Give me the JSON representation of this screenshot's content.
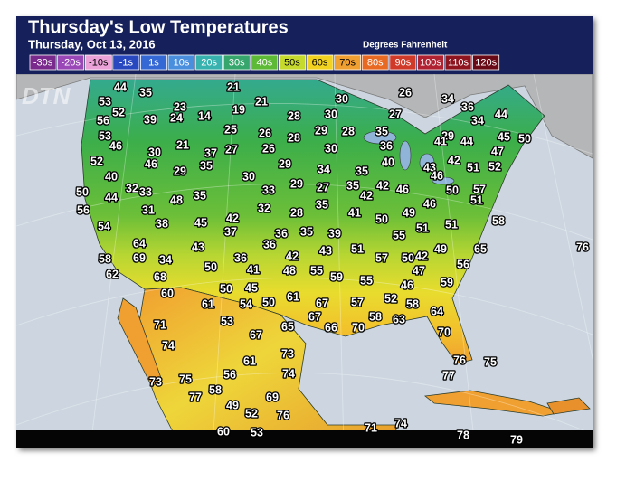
{
  "header": {
    "title": "Thursday's Low Temperatures",
    "subtitle": "Thursday, Oct 13, 2016",
    "units": "Degrees Fahrenheit"
  },
  "legend": [
    {
      "label": "-30s",
      "color": "#7a2a8c"
    },
    {
      "label": "-20s",
      "color": "#9a48b8"
    },
    {
      "label": "-10s",
      "color": "#eaa2d8"
    },
    {
      "label": "-1s",
      "color": "#2848c0"
    },
    {
      "label": "1s",
      "color": "#3468d4"
    },
    {
      "label": "10s",
      "color": "#4a8fde"
    },
    {
      "label": "20s",
      "color": "#38b2ae"
    },
    {
      "label": "30s",
      "color": "#36a66c"
    },
    {
      "label": "40s",
      "color": "#5cba36"
    },
    {
      "label": "50s",
      "color": "#c6da2e"
    },
    {
      "label": "60s",
      "color": "#f2d21e"
    },
    {
      "label": "70s",
      "color": "#f0a030"
    },
    {
      "label": "80s",
      "color": "#e86a22"
    },
    {
      "label": "90s",
      "color": "#d03a28"
    },
    {
      "label": "100s",
      "color": "#b02232"
    },
    {
      "label": "110s",
      "color": "#8e1420"
    },
    {
      "label": "120s",
      "color": "#6a0a16"
    }
  ],
  "logo": "DTN",
  "temperatures": [
    44,
    35,
    21,
    30,
    26,
    34,
    53,
    23,
    19,
    21,
    36,
    52,
    14,
    28,
    30,
    27,
    44,
    56,
    39,
    24,
    34,
    25,
    26,
    29,
    28,
    35,
    53,
    28,
    29,
    45,
    50,
    46,
    21,
    26,
    30,
    36,
    41,
    44,
    30,
    37,
    27,
    47,
    52,
    46,
    35,
    29,
    40,
    42,
    51,
    52,
    29,
    34,
    35,
    43,
    46,
    40,
    30,
    32,
    29,
    27,
    35,
    42,
    46,
    50,
    57,
    50,
    33,
    35,
    33,
    42,
    44,
    48,
    35,
    56,
    31,
    32,
    28,
    41,
    49,
    46,
    51,
    38,
    45,
    42,
    50,
    58,
    54,
    37,
    36,
    35,
    39,
    55,
    51,
    51,
    64,
    36,
    43,
    42,
    43,
    51,
    49,
    65,
    76,
    58,
    69,
    34,
    36,
    57,
    50,
    62,
    68,
    50,
    41,
    48,
    55,
    59,
    42,
    56,
    60,
    50,
    45,
    55,
    47,
    46,
    59,
    61,
    54,
    50,
    61,
    67,
    57,
    52,
    58,
    53,
    67,
    66,
    70,
    58,
    63,
    64,
    71,
    65,
    67,
    70,
    74,
    73,
    76,
    75,
    61,
    74,
    56,
    77,
    73,
    75,
    58,
    77,
    69,
    49,
    52,
    76,
    60,
    53,
    71,
    74,
    78,
    79
  ]
}
